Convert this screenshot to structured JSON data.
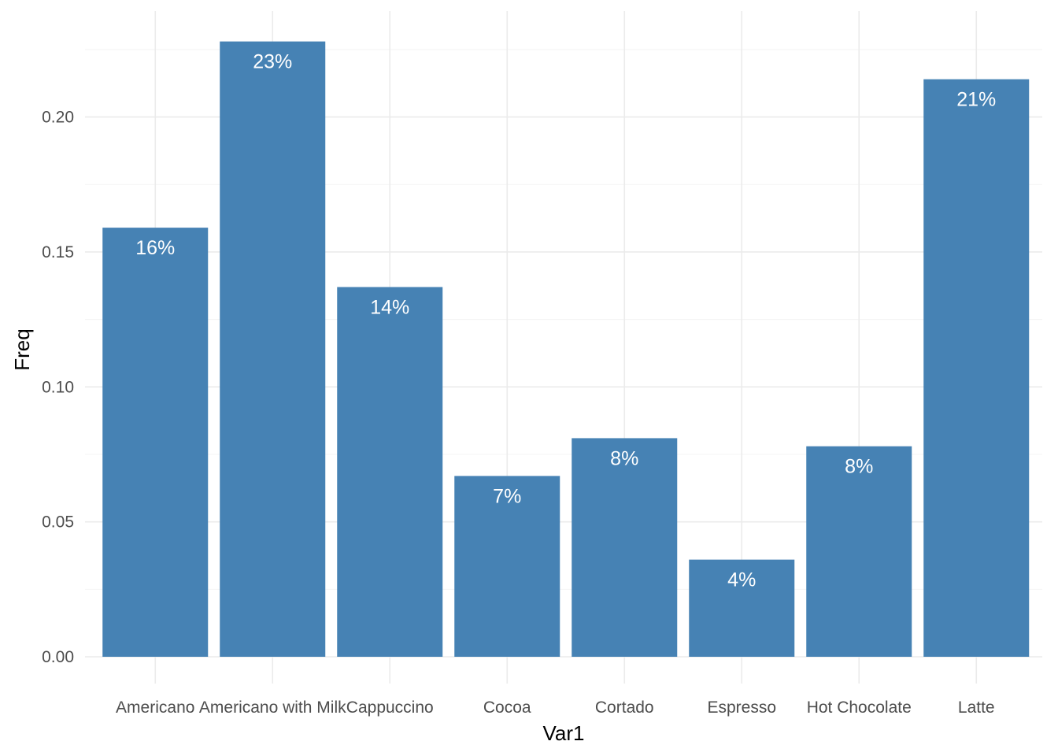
{
  "chart_data": {
    "type": "bar",
    "xlabel": "Var1",
    "ylabel": "Freq",
    "categories": [
      "Americano",
      "Americano with Milk",
      "Cappuccino",
      "Cocoa",
      "Cortado",
      "Espresso",
      "Hot Chocolate",
      "Latte"
    ],
    "values": [
      0.159,
      0.228,
      0.137,
      0.067,
      0.081,
      0.036,
      0.078,
      0.214
    ],
    "labels": [
      "16%",
      "23%",
      "14%",
      "7%",
      "8%",
      "4%",
      "8%",
      "21%"
    ],
    "ylim": [
      0,
      0.2285
    ],
    "yticks": [
      0.0,
      0.05,
      0.1,
      0.15,
      0.2
    ],
    "ytick_labels": [
      "0.00",
      "0.05",
      "0.10",
      "0.15",
      "0.20"
    ],
    "grid": true,
    "bar_color": "#4682b4",
    "label_color": "#ffffff"
  }
}
